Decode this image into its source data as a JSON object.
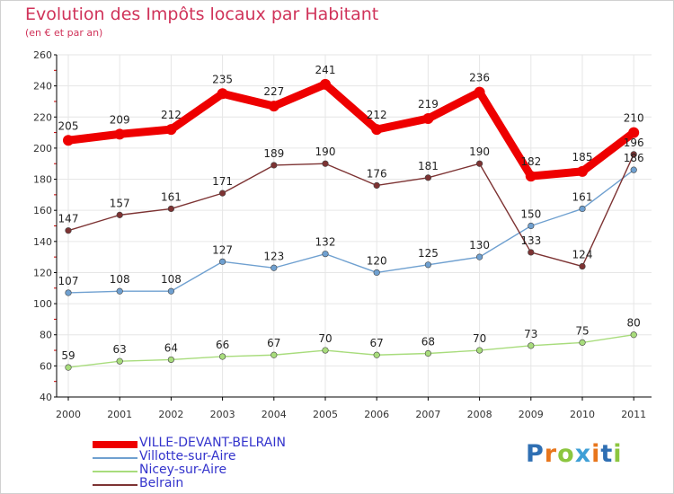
{
  "title": "Evolution des Impôts locaux par Habitant",
  "subtitle": "(en € et par an)",
  "colors": {
    "title": "#d0335a",
    "legend_text": "#3333cc",
    "grid": "#e6e6e6",
    "axis": "#000000"
  },
  "logo": {
    "text": "Proxiti",
    "letter_colors": [
      "#2f6fb3",
      "#e8761c",
      "#8cc63f",
      "#3e9fd6",
      "#e8761c",
      "#2f6fb3",
      "#8cc63f"
    ]
  },
  "chart_data": {
    "type": "line",
    "x": [
      "2000",
      "2001",
      "2002",
      "2003",
      "2004",
      "2005",
      "2006",
      "2007",
      "2008",
      "2009",
      "2010",
      "2011"
    ],
    "ylim": [
      40,
      260
    ],
    "yticks": [
      40,
      60,
      80,
      100,
      120,
      140,
      160,
      180,
      200,
      220,
      240,
      260
    ],
    "grid": true,
    "legend_position": "bottom-left",
    "series": [
      {
        "name": "VILLE-DEVANT-BELRAIN",
        "color": "#ee0000",
        "values": [
          205,
          209,
          212,
          235,
          227,
          241,
          212,
          219,
          236,
          182,
          185,
          210
        ],
        "labels": [
          "205",
          "209",
          "212",
          "235",
          "227",
          "241",
          "212",
          "219",
          "236",
          "182",
          "185",
          "210"
        ]
      },
      {
        "name": "Villotte-sur-Aire",
        "color": "#6fa0d0",
        "values": [
          107,
          108,
          108,
          127,
          123,
          132,
          120,
          125,
          130,
          150,
          161,
          186
        ],
        "labels": [
          "107",
          "108",
          "108",
          "127",
          "123",
          "132",
          "120",
          "125",
          "130",
          "150",
          "161",
          "186"
        ]
      },
      {
        "name": "Nicey-sur-Aire",
        "color": "#a8dc7c",
        "values": [
          59,
          63,
          64,
          66,
          67,
          70,
          67,
          68,
          70,
          73,
          75,
          80
        ],
        "labels": [
          "59",
          "63",
          "64",
          "66",
          "67",
          "70",
          "67",
          "68",
          "70",
          "73",
          "75",
          "80"
        ]
      },
      {
        "name": "Belrain",
        "color": "#7d3333",
        "values": [
          147,
          157,
          161,
          171,
          189,
          190,
          176,
          181,
          190,
          133,
          124,
          196
        ],
        "labels": [
          "147",
          "157",
          "161",
          "171",
          "189",
          "190",
          "176",
          "181",
          "190",
          "133",
          "124",
          "196"
        ]
      }
    ]
  }
}
